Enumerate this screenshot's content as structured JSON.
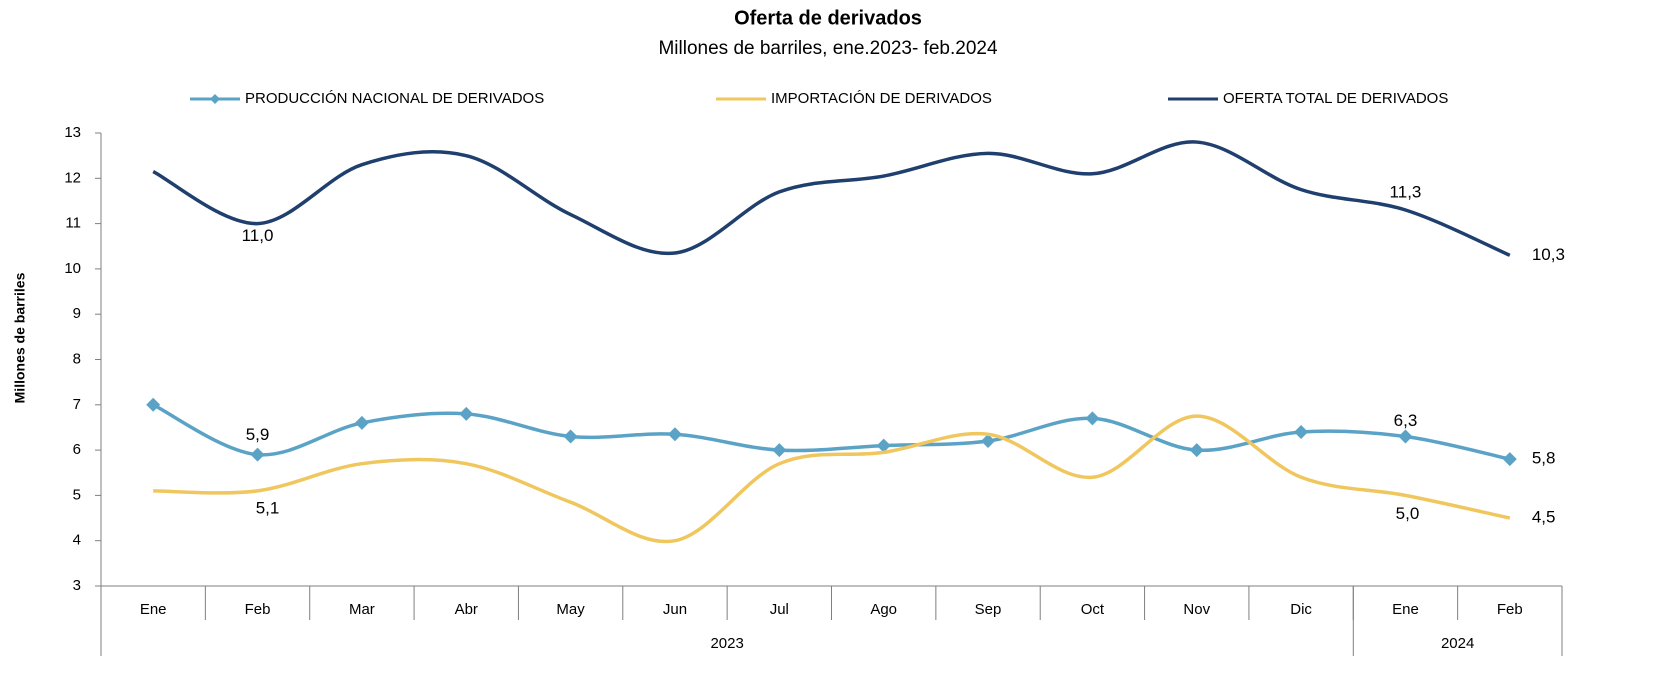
{
  "chart_data": {
    "type": "line",
    "title": "Oferta de derivados",
    "subtitle": "Millones de barriles, ene.2023- feb.2024",
    "y_label": "Millones de barriles",
    "categories": [
      "Ene",
      "Feb",
      "Mar",
      "Abr",
      "May",
      "Jun",
      "Jul",
      "Ago",
      "Sep",
      "Oct",
      "Nov",
      "Dic",
      "Ene",
      "Feb"
    ],
    "x_groups": [
      {
        "label": "2023",
        "count": 12
      },
      {
        "label": "2024",
        "count": 2
      }
    ],
    "ylim": [
      3,
      13
    ],
    "yticks": [
      3,
      4,
      5,
      6,
      7,
      8,
      9,
      10,
      11,
      12,
      13
    ],
    "grid": false,
    "legend": "top",
    "series": [
      {
        "name": "PRODUCCIÓN NACIONAL DE DERIVADOS",
        "color": "#5ba3c6",
        "marker": "diamond",
        "values": [
          7.0,
          5.9,
          6.6,
          6.8,
          6.3,
          6.35,
          6.0,
          6.1,
          6.2,
          6.7,
          6.0,
          6.4,
          6.3,
          5.8
        ],
        "value_labels": [
          null,
          "5,9",
          null,
          null,
          null,
          null,
          null,
          null,
          null,
          null,
          null,
          null,
          "6,3",
          "5,8"
        ]
      },
      {
        "name": "IMPORTACIÓN DE DERIVADOS",
        "color": "#f0c75e",
        "marker": "none",
        "values": [
          5.1,
          5.1,
          5.7,
          5.7,
          4.85,
          4.0,
          5.7,
          5.95,
          6.35,
          5.4,
          6.75,
          5.4,
          5.0,
          4.5
        ],
        "value_labels": [
          null,
          "5,1",
          null,
          null,
          null,
          null,
          null,
          null,
          null,
          null,
          null,
          null,
          "5,0",
          "4,5"
        ]
      },
      {
        "name": "OFERTA TOTAL DE DERIVADOS",
        "color": "#1f3f6e",
        "marker": "none",
        "values": [
          12.15,
          11.0,
          12.3,
          12.5,
          11.2,
          10.35,
          11.7,
          12.05,
          12.55,
          12.1,
          12.8,
          11.75,
          11.3,
          10.3
        ],
        "value_labels": [
          null,
          "11,0",
          null,
          null,
          null,
          null,
          null,
          null,
          null,
          null,
          null,
          null,
          "11,3",
          "10,3"
        ]
      }
    ]
  }
}
